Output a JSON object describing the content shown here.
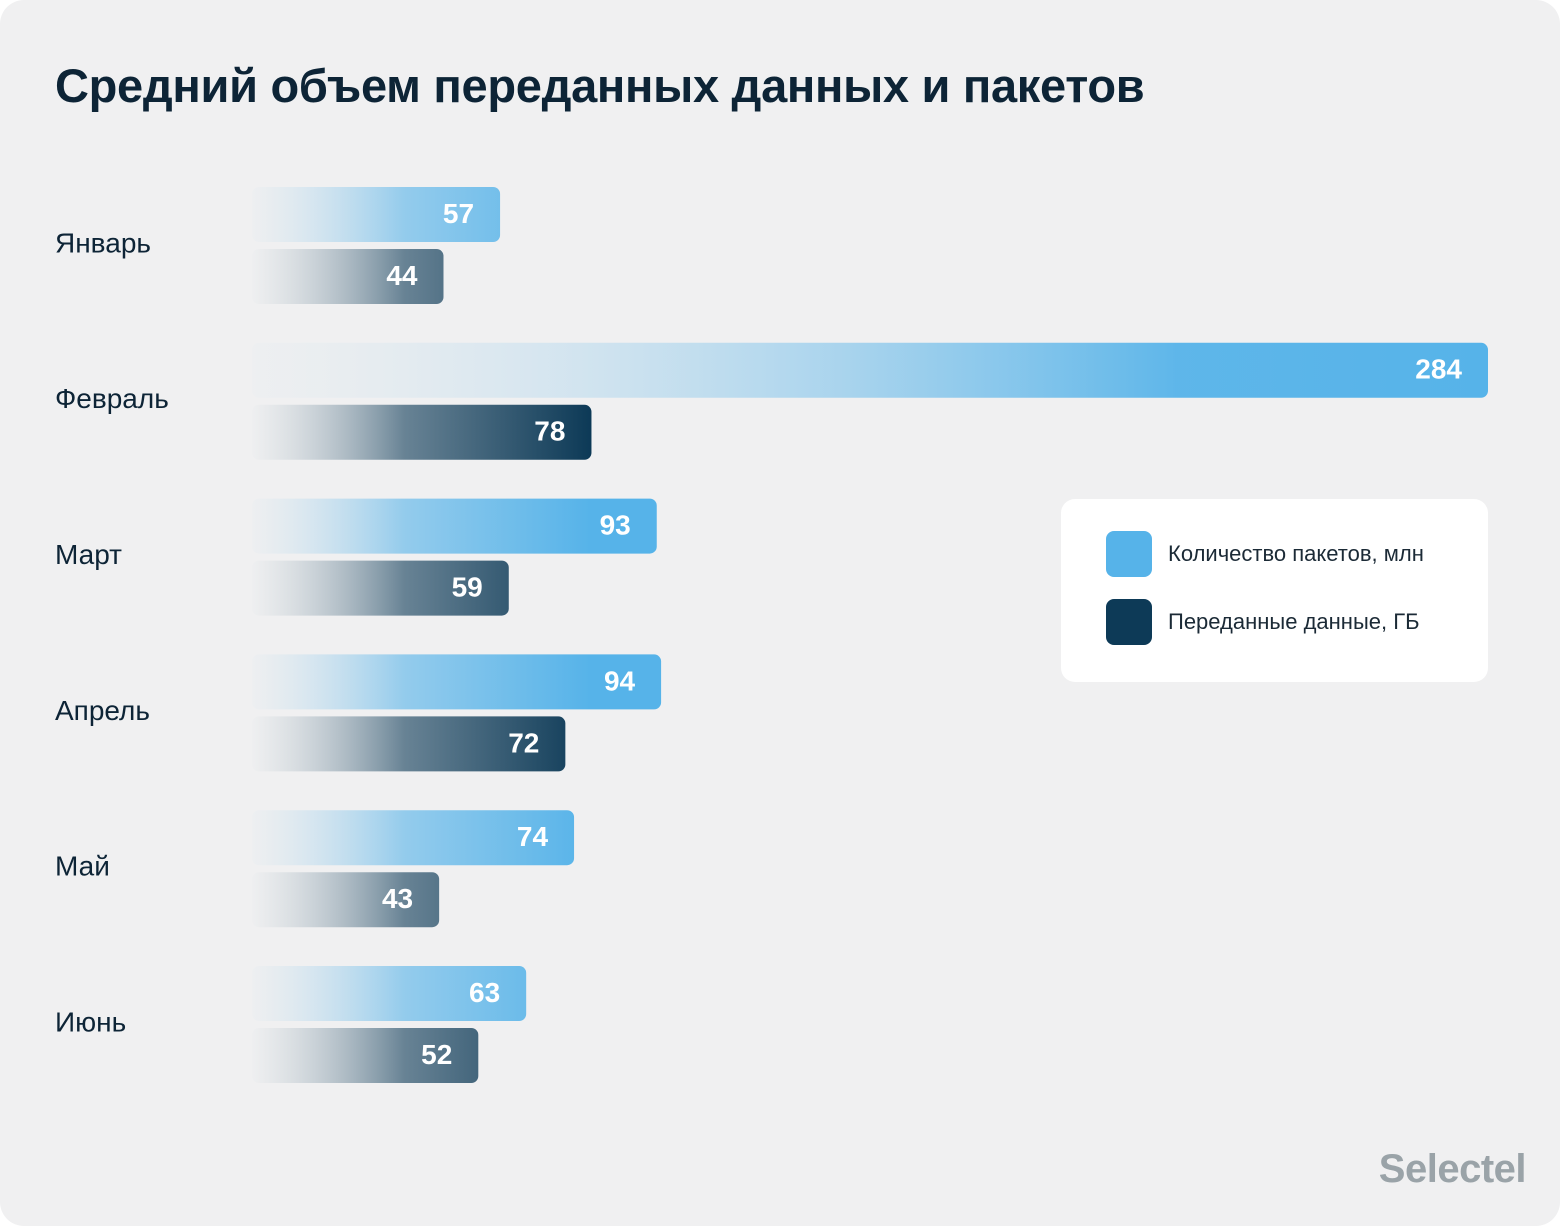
{
  "chart_data": {
    "type": "bar",
    "orientation": "horizontal",
    "title": "Средний объем переданных данных и пакетов",
    "categories": [
      "Январь",
      "Февраль",
      "Март",
      "Апрель",
      "Май",
      "Июнь"
    ],
    "series": [
      {
        "name": "Количество пакетов, млн",
        "values": [
          57,
          284,
          93,
          94,
          74,
          63
        ]
      },
      {
        "name": "Переданные данные, ГБ",
        "values": [
          44,
          78,
          59,
          72,
          43,
          52
        ]
      }
    ],
    "data_labels": true,
    "grid": false,
    "legend_position": "right"
  },
  "colors": {
    "packets": "#56b3e9",
    "data": "#0d3a57"
  },
  "brand": "Selectel"
}
